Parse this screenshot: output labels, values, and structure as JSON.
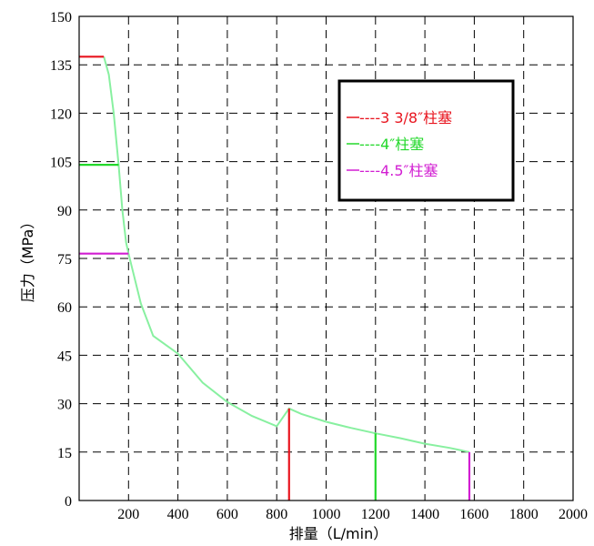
{
  "chart_data": {
    "type": "line",
    "xlabel": "排量（L/min）",
    "ylabel": "压力（MPa）",
    "xlim": [
      0,
      2000
    ],
    "ylim": [
      0,
      150
    ],
    "x_ticks": [
      "200",
      "400",
      "600",
      "800",
      "1000",
      "1200",
      "1400",
      "1600",
      "1800",
      "2000"
    ],
    "y_ticks": [
      "0",
      "15",
      "30",
      "45",
      "60",
      "75",
      "90",
      "105",
      "120",
      "135",
      "150"
    ],
    "grid": true,
    "legend_position": "top-right",
    "curve_color": "#88f0a0",
    "curve": {
      "x": [
        100,
        120,
        140,
        160,
        175,
        190,
        200,
        250,
        300,
        400,
        500,
        600,
        700,
        800,
        850,
        900,
        1000,
        1100,
        1200,
        1300,
        1400,
        1500,
        1580
      ],
      "y": [
        137.5,
        132,
        120,
        104,
        90,
        80,
        76.5,
        61,
        51,
        45.5,
        36.5,
        30.5,
        26.2,
        23,
        28.5,
        26.8,
        24.4,
        22.5,
        20.8,
        19.3,
        17.6,
        16.3,
        15
      ]
    },
    "series": [
      {
        "name": "3 3/8″柱塞",
        "legend_label": "----3 3/8″柱塞",
        "color": "#e8141e",
        "max_pressure": 137.5,
        "max_flow": 850,
        "low_flow_end": 100
      },
      {
        "name": "4″柱塞",
        "legend_label": "----4″柱塞",
        "color": "#22d82a",
        "max_pressure": 104,
        "max_flow": 1200,
        "low_flow_end": 160
      },
      {
        "name": "4.5″柱塞",
        "legend_label": "----4.5″柱塞",
        "color": "#d21ed2",
        "max_pressure": 76.5,
        "max_flow": 1580,
        "low_flow_end": 200
      }
    ]
  }
}
